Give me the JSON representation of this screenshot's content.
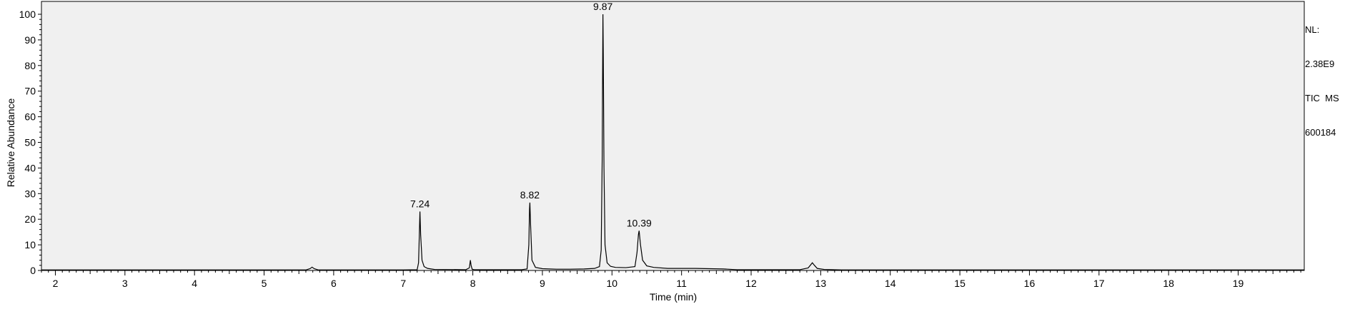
{
  "chart_data": {
    "type": "line",
    "title": "",
    "xlabel": "Time (min)",
    "ylabel": "Relative Abundance",
    "xlim": [
      1.8,
      19.95
    ],
    "ylim": [
      0,
      100
    ],
    "x_ticks": [
      2,
      3,
      4,
      5,
      6,
      7,
      8,
      9,
      10,
      11,
      12,
      13,
      14,
      15,
      16,
      17,
      18,
      19
    ],
    "y_ticks": [
      0,
      10,
      20,
      30,
      40,
      50,
      60,
      70,
      80,
      90,
      100
    ],
    "grid": false,
    "plot_background": "#f0f0f0",
    "line_color": "#000000",
    "series": [
      {
        "x": [
          1.8,
          5.6,
          5.66,
          5.69,
          5.72,
          5.78,
          7.0,
          7.2,
          7.22,
          7.235,
          7.24,
          7.25,
          7.27,
          7.3,
          7.35,
          7.45,
          7.9,
          7.95,
          7.965,
          7.975,
          7.99,
          8.02,
          8.7,
          8.78,
          8.805,
          8.815,
          8.82,
          8.83,
          8.85,
          8.9,
          9.0,
          9.2,
          9.4,
          9.6,
          9.75,
          9.82,
          9.845,
          9.86,
          9.865,
          9.87,
          9.875,
          9.885,
          9.9,
          9.93,
          9.98,
          10.05,
          10.2,
          10.33,
          10.36,
          10.38,
          10.39,
          10.41,
          10.44,
          10.5,
          10.6,
          10.8,
          11.2,
          11.6,
          11.8,
          12.7,
          12.82,
          12.88,
          12.91,
          12.95,
          13.05,
          13.3,
          19.95
        ],
        "y": [
          0.2,
          0.2,
          0.7,
          1.3,
          0.7,
          0.2,
          0.2,
          0.3,
          3.0,
          18.0,
          23.0,
          14.0,
          4.0,
          1.5,
          0.8,
          0.4,
          0.3,
          1.0,
          4.0,
          2.0,
          0.5,
          0.3,
          0.3,
          0.6,
          10.0,
          24.0,
          26.5,
          18.0,
          4.0,
          1.2,
          0.7,
          0.5,
          0.5,
          0.6,
          0.8,
          1.5,
          8.0,
          45.0,
          75.0,
          100.0,
          85.0,
          40.0,
          10.0,
          3.0,
          1.6,
          1.2,
          1.1,
          1.5,
          7.0,
          14.0,
          15.5,
          10.0,
          4.0,
          1.8,
          1.2,
          0.8,
          0.8,
          0.6,
          0.3,
          0.3,
          1.0,
          3.0,
          2.0,
          0.8,
          0.4,
          0.2,
          0.2
        ]
      }
    ],
    "peak_labels": [
      {
        "x": 7.24,
        "y": 23.0,
        "text": "7.24"
      },
      {
        "x": 8.82,
        "y": 26.5,
        "text": "8.82"
      },
      {
        "x": 9.87,
        "y": 100.0,
        "text": "9.87"
      },
      {
        "x": 10.39,
        "y": 15.5,
        "text": "10.39"
      }
    ]
  },
  "info_box": {
    "line1": "NL:",
    "line2": "2.38E9",
    "line3": "TIC  MS",
    "line4": "600184"
  }
}
